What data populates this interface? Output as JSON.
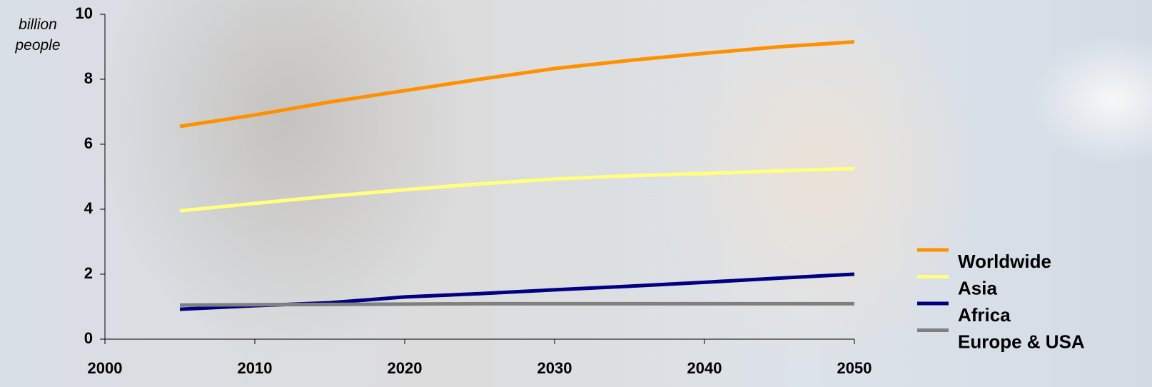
{
  "chart_data": {
    "type": "line",
    "y_label": "billion people",
    "x": [
      2005,
      2010,
      2015,
      2020,
      2025,
      2030,
      2035,
      2040,
      2045,
      2050
    ],
    "series": [
      {
        "name": "Worldwide",
        "color": "#ff9100",
        "values": [
          6.55,
          6.9,
          7.3,
          7.65,
          8.0,
          8.33,
          8.58,
          8.8,
          9.0,
          9.15
        ]
      },
      {
        "name": "Asia",
        "color": "#ffff80",
        "values": [
          3.95,
          4.18,
          4.4,
          4.6,
          4.78,
          4.93,
          5.03,
          5.1,
          5.18,
          5.25
        ]
      },
      {
        "name": "Africa",
        "color": "#000080",
        "values": [
          0.92,
          1.03,
          1.12,
          1.3,
          1.4,
          1.52,
          1.63,
          1.75,
          1.88,
          2.0
        ]
      },
      {
        "name": "Europe & USA",
        "color": "#808080",
        "values": [
          1.05,
          1.06,
          1.07,
          1.08,
          1.09,
          1.09,
          1.09,
          1.09,
          1.09,
          1.09
        ]
      }
    ],
    "xlim": [
      2000,
      2050
    ],
    "xticks": [
      2000,
      2010,
      2020,
      2030,
      2040,
      2050
    ],
    "ylim": [
      0,
      10
    ],
    "yticks": [
      0,
      2,
      4,
      6,
      8,
      10
    ],
    "legend": "bottom-right"
  }
}
